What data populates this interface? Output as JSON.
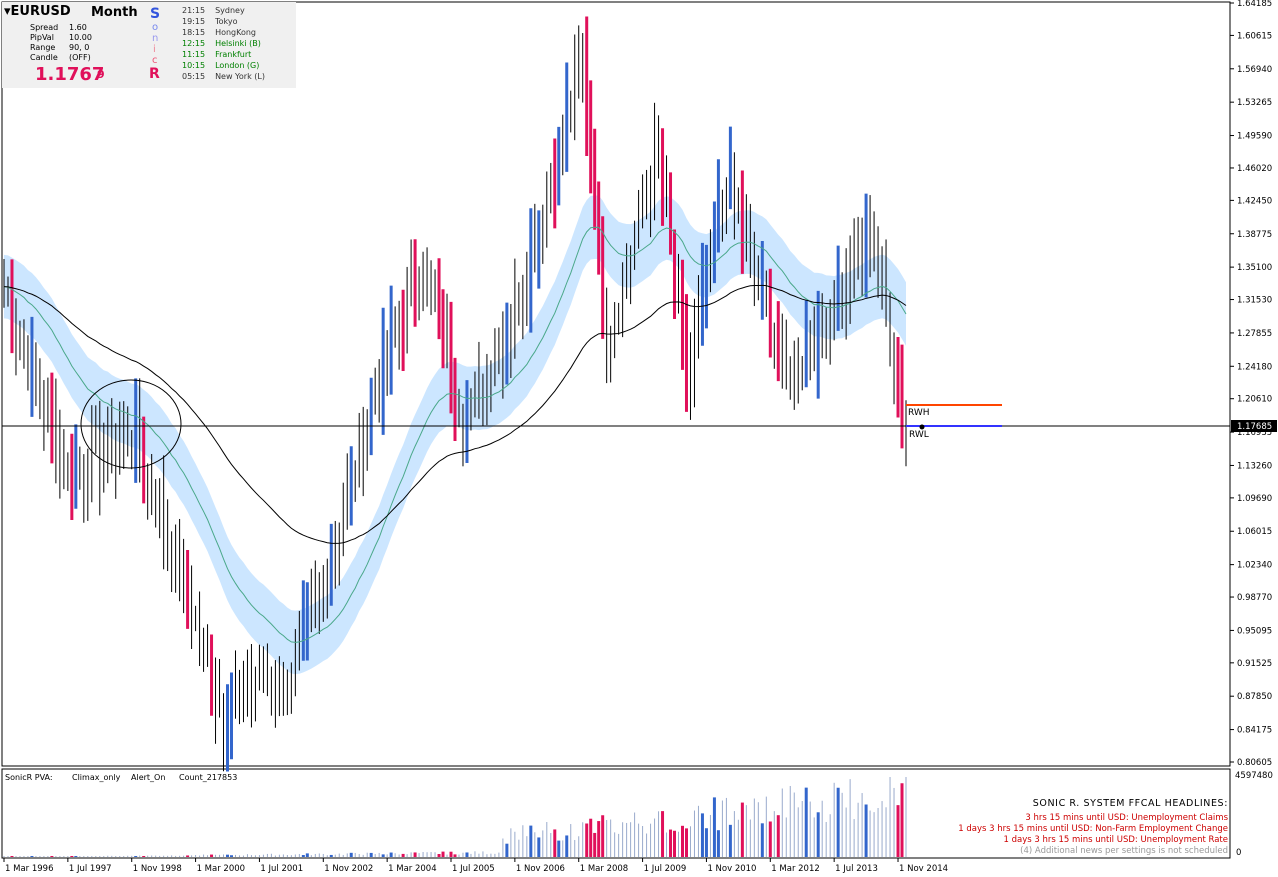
{
  "panel": {
    "symbol": "EURUSD",
    "timeframe": "Month",
    "spread_label": "Spread",
    "spread_value": "1.60",
    "pipval_label": "PipVal",
    "pipval_value": "10.00",
    "range_label": "Range",
    "range_value": "90, 0",
    "candle_label": "Candle",
    "candle_value": "(OFF)",
    "price_main": "1.1767",
    "price_digit": "9",
    "sonic_letters": [
      "S",
      "o",
      "n",
      "i",
      "c",
      "R"
    ],
    "sessions": [
      {
        "time": "21:15",
        "name": "Sydney",
        "color": "#333333"
      },
      {
        "time": "19:15",
        "name": "Tokyo",
        "color": "#333333"
      },
      {
        "time": "18:15",
        "name": "HongKong",
        "color": "#333333"
      },
      {
        "time": "12:15",
        "name": "Helsinki  (B)",
        "color": "#008000"
      },
      {
        "time": "11:15",
        "name": "Frankfurt",
        "color": "#008000"
      },
      {
        "time": "10:15",
        "name": "London  (G)",
        "color": "#008000"
      },
      {
        "time": "05:15",
        "name": "New York  (L)",
        "color": "#333333"
      }
    ]
  },
  "price_axis": {
    "ticks": [
      "1.64185",
      "1.60615",
      "1.56940",
      "1.53265",
      "1.49590",
      "1.46020",
      "1.42450",
      "1.38775",
      "1.35100",
      "1.31530",
      "1.27855",
      "1.24180",
      "1.20610",
      "1.16935",
      "1.13260",
      "1.09690",
      "1.06015",
      "1.02340",
      "0.98770",
      "0.95095",
      "0.91525",
      "0.87850",
      "0.84175",
      "0.80605"
    ],
    "current_price_label": "1.17685"
  },
  "levels": {
    "rwh_label": "RWH",
    "rwl_label": "RWL",
    "rwh_color": "#ff4500",
    "rwl_color": "#3333ff"
  },
  "indicator": {
    "header": [
      "SonicR PVA:",
      "Climax_only",
      "Alert_On",
      "Count_217853"
    ],
    "max_label": "4597480",
    "zero_label": "0"
  },
  "headlines": {
    "title": "SONIC R. SYSTEM  FFCAL HEADLINES:",
    "items": [
      {
        "text": "3 hrs 15 mins until USD: Unemployment Claims",
        "color": "#cc0000"
      },
      {
        "text": "1 days 3 hrs 15 mins until USD: Non-Farm Employment Change",
        "color": "#cc0000"
      },
      {
        "text": "1 days 3 hrs 15 mins until USD: Unemployment Rate",
        "color": "#cc0000"
      },
      {
        "text": "(4)  Additional news per settings is not scheduled",
        "color": "#999999"
      }
    ]
  },
  "time_axis": {
    "labels": [
      "1 Mar 1996",
      "1 Jul 1997",
      "1 Nov 1998",
      "1 Mar 2000",
      "1 Jul 2001",
      "1 Nov 2002",
      "1 Mar 2004",
      "1 Jul 2005",
      "1 Nov 2006",
      "1 Mar 2008",
      "1 Jul 2009",
      "1 Nov 2010",
      "1 Mar 2012",
      "1 Jul 2013",
      "1 Nov 2014"
    ]
  },
  "colors": {
    "bar_normal": "#000000",
    "bar_climax_bull": "#3366cc",
    "bar_climax_bear": "#e0105a",
    "dragon_band": "#cce6ff",
    "dragon_mid": "#4aa88a",
    "ema_slow": "#000000",
    "vol_normal": "#99aacc",
    "vol_bull": "#3366cc",
    "vol_bear": "#e0105a"
  },
  "chart_data": {
    "type": "ohlc",
    "title": "EURUSD Month",
    "current_price": 1.17685,
    "ylim": [
      0.80605,
      1.64185
    ],
    "rwh": 1.2045,
    "rwl": 1.1769,
    "x_start": "1996-03",
    "x_end": "2015-01",
    "series_waypoints": [
      {
        "date": "1996-03",
        "close": 1.33
      },
      {
        "date": "1997-07",
        "close": 1.12
      },
      {
        "date": "1998-11",
        "close": 1.17
      },
      {
        "date": "1999-10",
        "close": 1.03
      },
      {
        "date": "2000-10",
        "close": 0.86
      },
      {
        "date": "2001-07",
        "close": 0.9
      },
      {
        "date": "2002-01",
        "close": 0.88
      },
      {
        "date": "2002-11",
        "close": 1.0
      },
      {
        "date": "2004-03",
        "close": 1.26
      },
      {
        "date": "2004-12",
        "close": 1.35
      },
      {
        "date": "2005-11",
        "close": 1.18
      },
      {
        "date": "2006-12",
        "close": 1.32
      },
      {
        "date": "2008-04",
        "close": 1.58
      },
      {
        "date": "2008-10",
        "close": 1.27
      },
      {
        "date": "2009-11",
        "close": 1.48
      },
      {
        "date": "2010-06",
        "close": 1.22
      },
      {
        "date": "2011-04",
        "close": 1.45
      },
      {
        "date": "2012-07",
        "close": 1.23
      },
      {
        "date": "2013-05",
        "close": 1.3
      },
      {
        "date": "2014-05",
        "close": 1.38
      },
      {
        "date": "2015-01",
        "close": 1.176
      }
    ]
  }
}
